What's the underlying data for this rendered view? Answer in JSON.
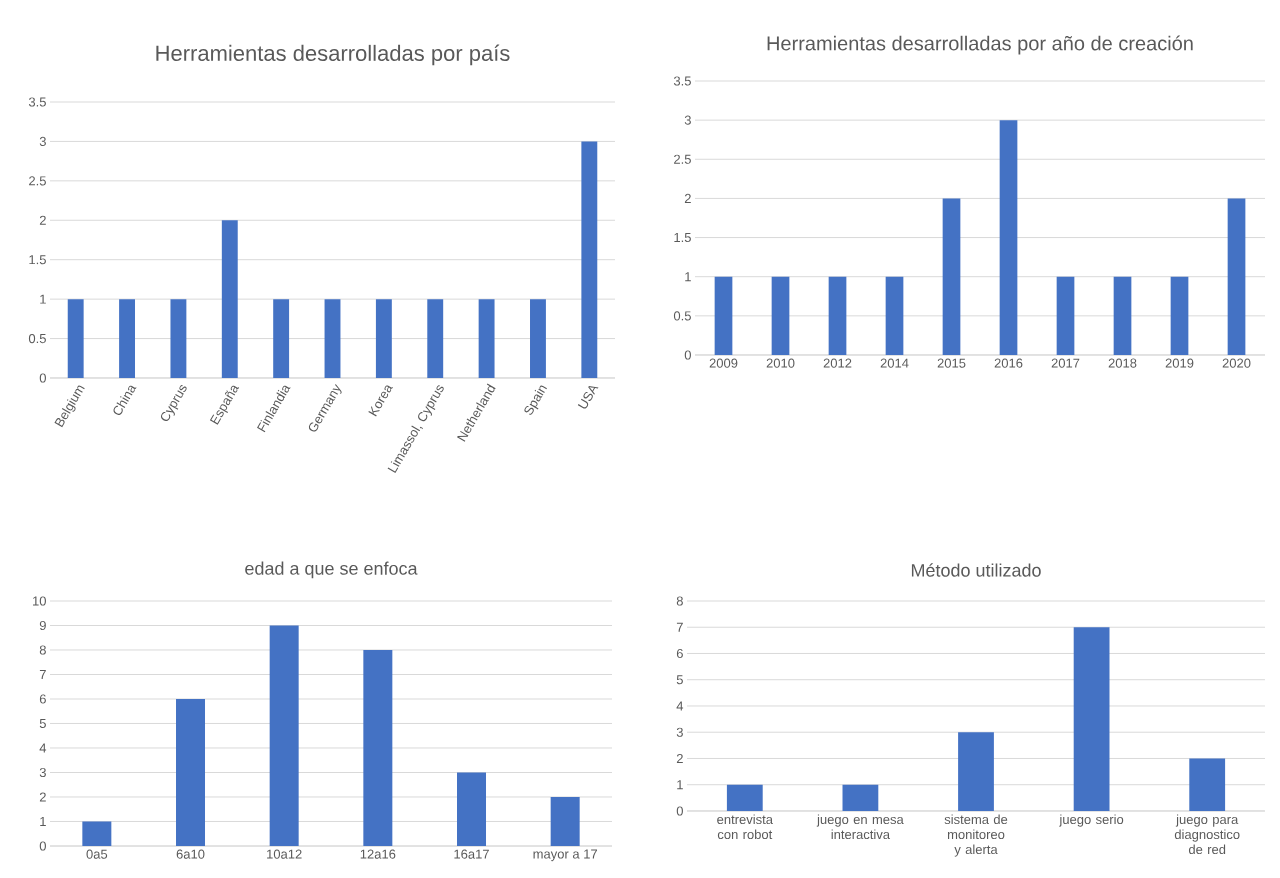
{
  "chart_data": [
    {
      "type": "bar",
      "title": "Herramientas desarrolladas por país",
      "categories": [
        "Belgium",
        "China",
        "Cyprus",
        "España",
        "Finlandia",
        "Germany",
        "Korea",
        "Limassol, Cyprus",
        "Netherland",
        "Spain",
        "USA"
      ],
      "values": [
        1,
        1,
        1,
        2,
        1,
        1,
        1,
        1,
        1,
        1,
        3
      ],
      "color": "#4472c4",
      "ylim": [
        0,
        3.5
      ],
      "yticks": [
        0,
        0.5,
        1,
        1.5,
        2,
        2.5,
        3,
        3.5
      ],
      "grid": "y"
    },
    {
      "type": "bar",
      "title": "Herramientas desarrolladas por año de creación",
      "categories": [
        "2009",
        "2010",
        "2012",
        "2014",
        "2015",
        "2016",
        "2017",
        "2018",
        "2019",
        "2020"
      ],
      "values": [
        1,
        1,
        1,
        1,
        2,
        3,
        1,
        1,
        1,
        2
      ],
      "color": "#4472c4",
      "ylim": [
        0,
        3.5
      ],
      "yticks": [
        0,
        0.5,
        1,
        1.5,
        2,
        2.5,
        3,
        3.5
      ],
      "grid": "y"
    },
    {
      "type": "bar",
      "title": "edad a que se enfoca",
      "categories": [
        "0a5",
        "6a10",
        "10a12",
        "12a16",
        "16a17",
        "mayor a 17"
      ],
      "values": [
        1,
        6,
        9,
        8,
        3,
        2
      ],
      "color": "#4472c4",
      "ylim": [
        0,
        10
      ],
      "yticks": [
        0,
        1,
        2,
        3,
        4,
        5,
        6,
        7,
        8,
        9,
        10
      ],
      "grid": "y"
    },
    {
      "type": "bar",
      "title": "Método utilizado",
      "categories": [
        "entrevista con robot",
        "juego en mesa interactiva",
        "sistema de monitoreo y alerta",
        "juego serio",
        "juego para diagnostico de red"
      ],
      "values": [
        1,
        1,
        3,
        7,
        2
      ],
      "color": "#4472c4",
      "ylim": [
        0,
        8
      ],
      "yticks": [
        0,
        1,
        2,
        3,
        4,
        5,
        6,
        7,
        8
      ],
      "grid": "y"
    }
  ]
}
